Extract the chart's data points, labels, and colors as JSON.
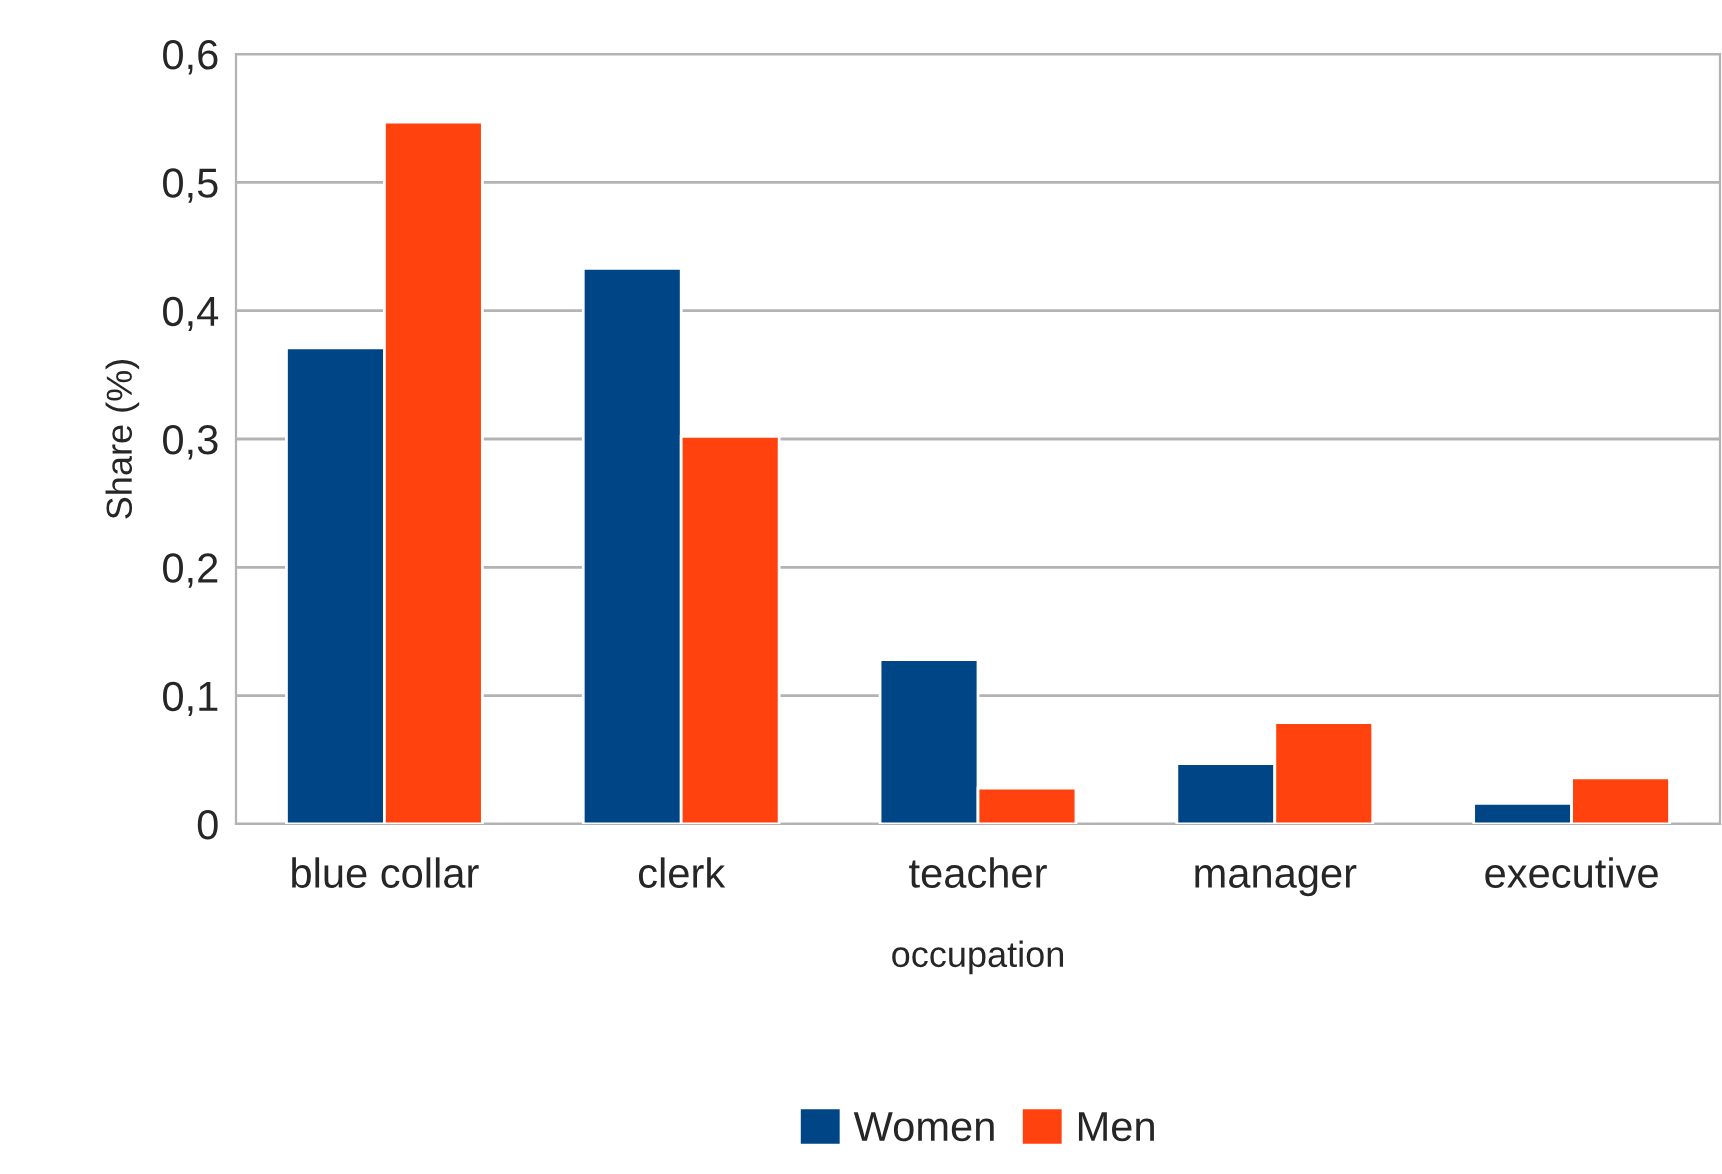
{
  "chart_data": {
    "type": "bar",
    "xlabel": "occupation",
    "ylabel": "Share (%)",
    "categories": [
      "blue collar",
      "clerk",
      "teacher",
      "manager",
      "executive"
    ],
    "series": [
      {
        "name": "Women",
        "color": "#004586",
        "values": [
          0.371,
          0.433,
          0.128,
          0.047,
          0.016
        ]
      },
      {
        "name": "Men",
        "color": "#ff420e",
        "values": [
          0.547,
          0.302,
          0.028,
          0.079,
          0.036
        ]
      }
    ],
    "ylim": [
      0,
      0.6
    ],
    "yticks": [
      0,
      {
        "value": 0.1,
        "label": "0,1"
      },
      {
        "value": 0.2,
        "label": "0,2"
      },
      {
        "value": 0.3,
        "label": "0,3"
      },
      {
        "value": 0.4,
        "label": "0,4"
      },
      {
        "value": 0.5,
        "label": "0,5"
      },
      {
        "value": 0.6,
        "label": "0,6"
      }
    ],
    "grid": "y",
    "legend": "bottom"
  }
}
